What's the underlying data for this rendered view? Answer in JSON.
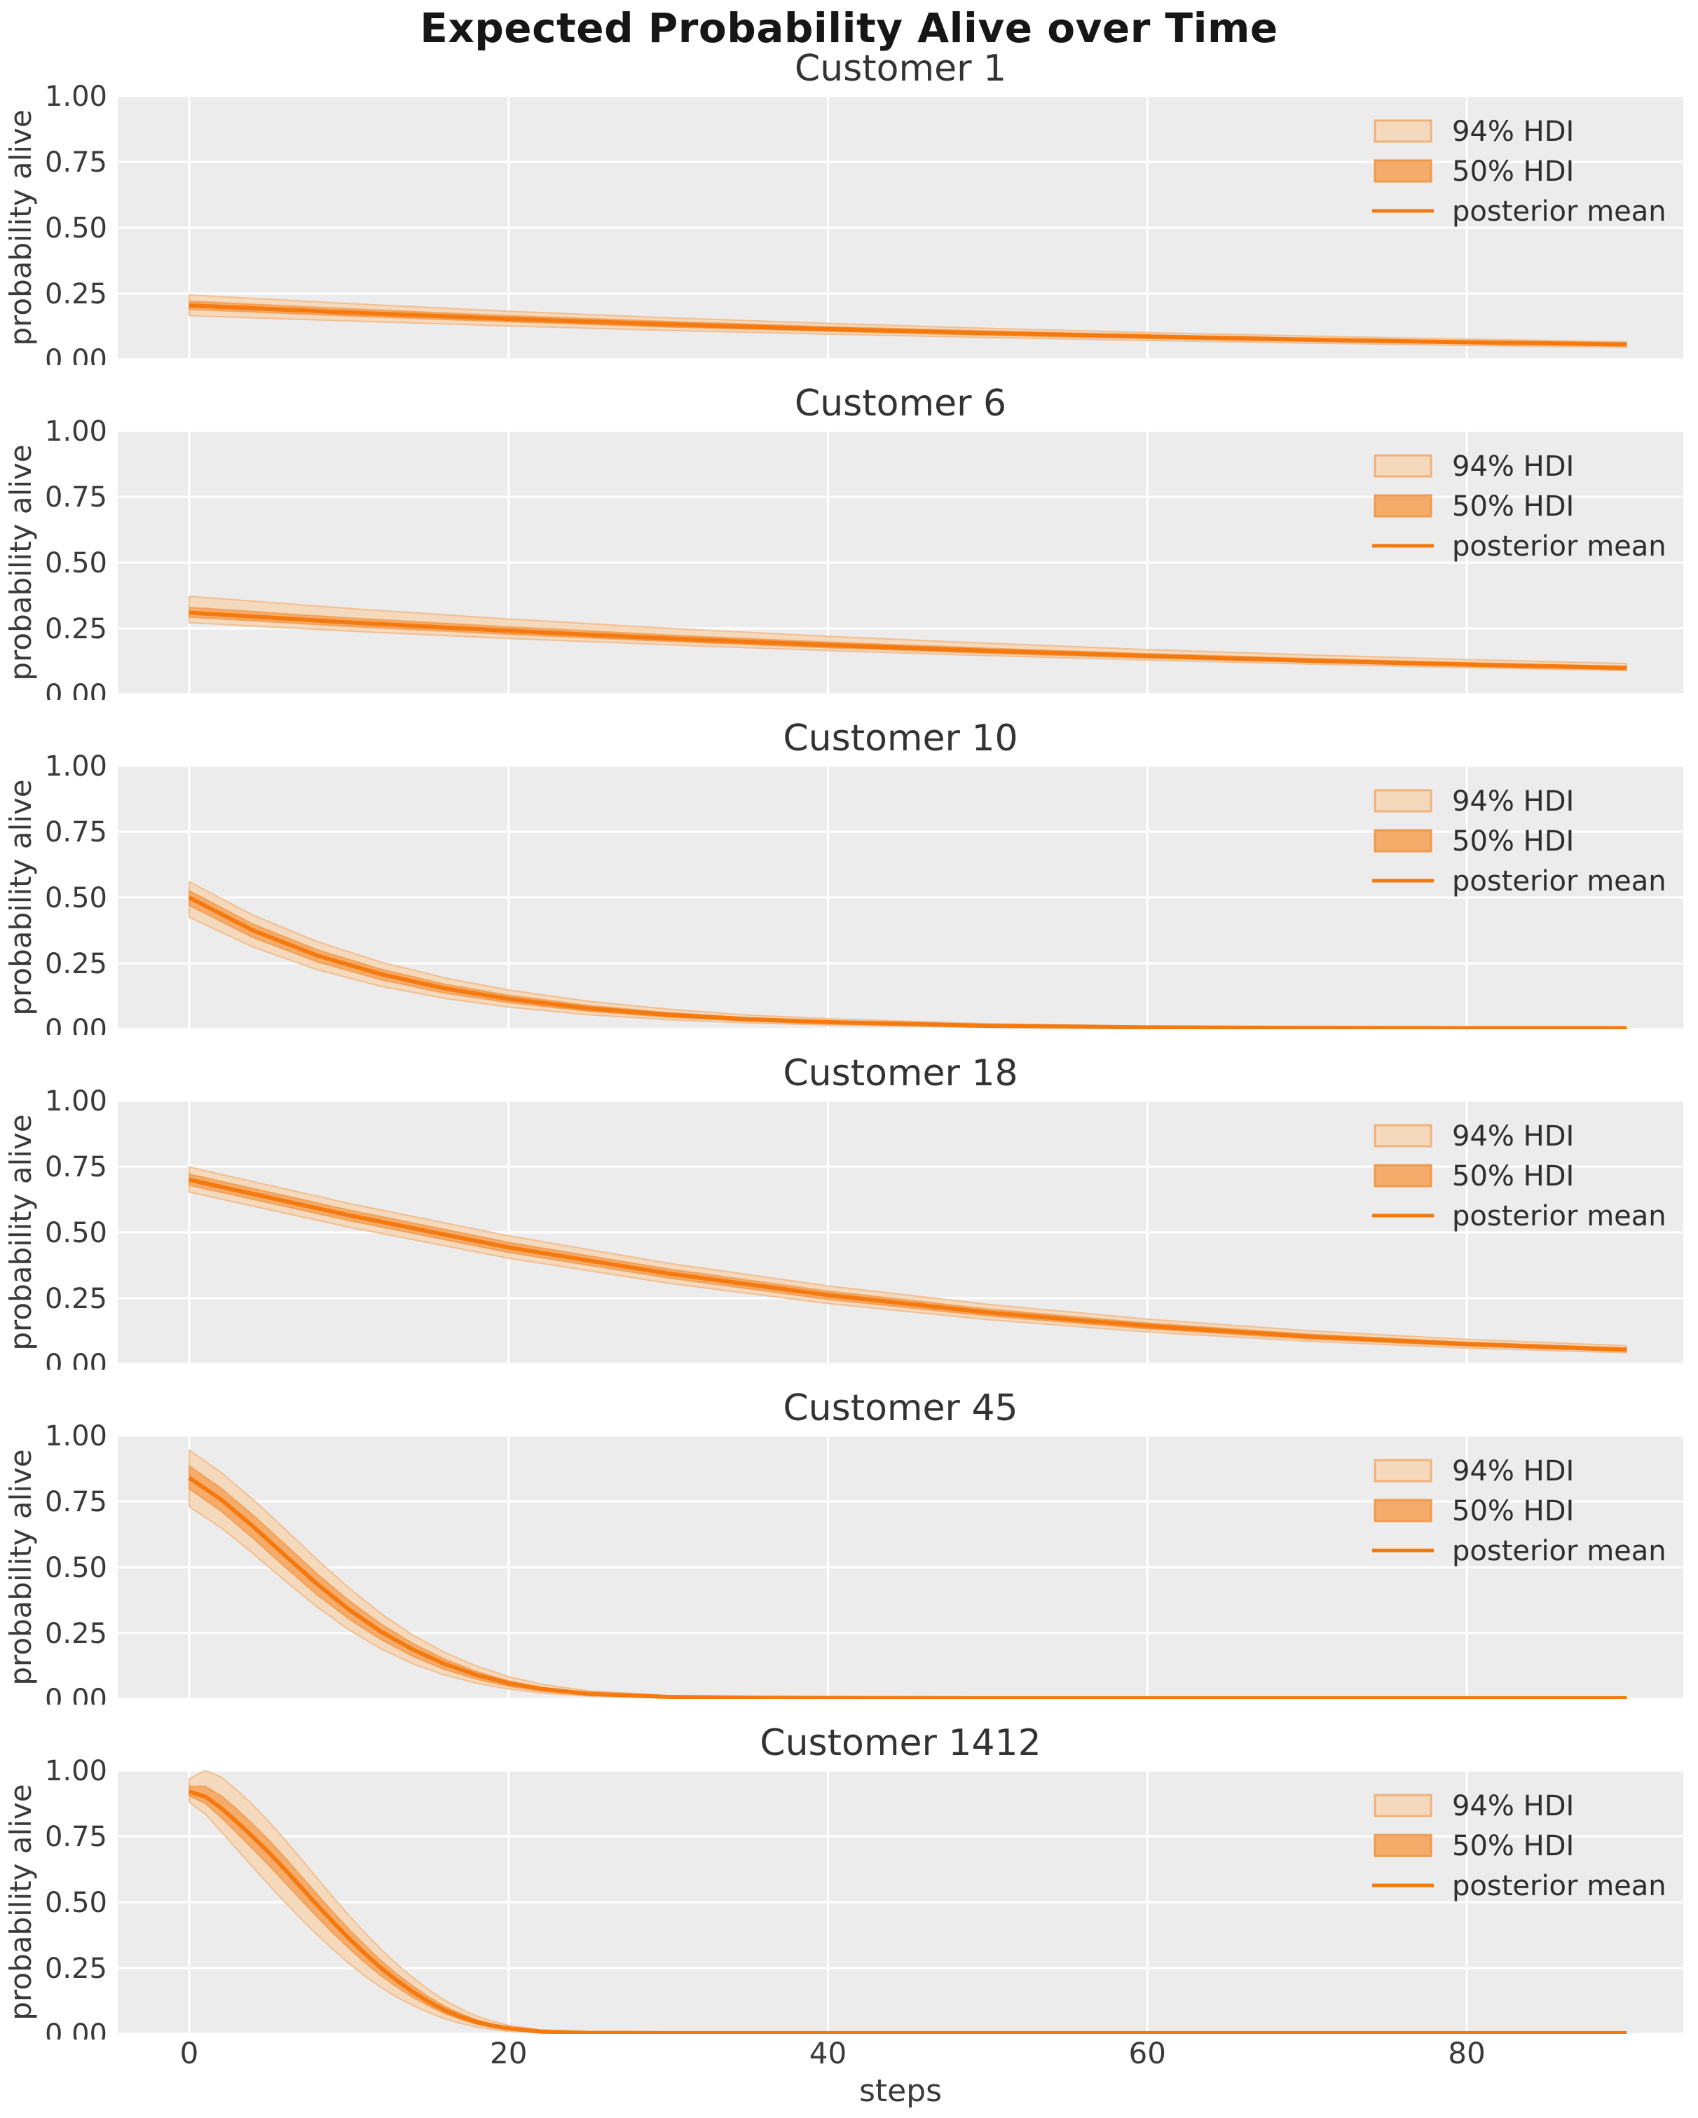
{
  "title": "Expected Probability Alive over Time",
  "x_axis": {
    "label": "steps",
    "ticks": [
      0,
      20,
      40,
      60,
      80
    ],
    "range": [
      -4.5,
      93.5
    ]
  },
  "y_axis": {
    "label": "probability alive",
    "tick_labels": [
      "0.00",
      "0.25",
      "0.50",
      "0.75",
      "1.00"
    ],
    "tick_values": [
      0,
      0.25,
      0.5,
      0.75,
      1.0
    ],
    "range": [
      0,
      1
    ]
  },
  "legend": {
    "items": [
      {
        "label": "94% HDI",
        "type": "patch"
      },
      {
        "label": "50% HDI",
        "type": "patch"
      },
      {
        "label": "posterior mean",
        "type": "line"
      }
    ]
  },
  "colors": {
    "axes_background": "#ececec",
    "grid": "#ffffff",
    "mean_line": "#f47a10",
    "hdi94_fill": "#f5d9bc",
    "hdi94_edge": "#f0b27c",
    "hdi50_fill": "#f5ab69",
    "hdi50_edge": "#ee9a4e",
    "tick_text": "#3a3a3a",
    "title_text": "#333333",
    "suptitle_text": "#161616"
  },
  "chart_data": {
    "type": "line",
    "title": "Expected Probability Alive over Time",
    "xlabel": "steps",
    "ylabel": "probability alive",
    "xlim": [
      -4.5,
      93.5
    ],
    "ylim": [
      0,
      1
    ],
    "grid": true,
    "legend_position": "upper right",
    "legend_labels": [
      "94% HDI",
      "50% HDI",
      "posterior mean"
    ],
    "subplots": [
      {
        "title": "Customer 1",
        "t": [
          0,
          10,
          20,
          30,
          40,
          50,
          60,
          70,
          80,
          90
        ],
        "mean": [
          0.205,
          0.178,
          0.154,
          0.133,
          0.115,
          0.1,
          0.087,
          0.075,
          0.065,
          0.057
        ],
        "hi94": [
          0.245,
          0.212,
          0.183,
          0.158,
          0.137,
          0.118,
          0.102,
          0.089,
          0.077,
          0.067
        ],
        "lo94": [
          0.166,
          0.146,
          0.127,
          0.11,
          0.096,
          0.083,
          0.072,
          0.062,
          0.053,
          0.046
        ],
        "hi50": [
          0.221,
          0.192,
          0.166,
          0.144,
          0.124,
          0.108,
          0.093,
          0.081,
          0.07,
          0.061
        ],
        "lo50": [
          0.19,
          0.165,
          0.143,
          0.123,
          0.107,
          0.092,
          0.08,
          0.069,
          0.06,
          0.052
        ]
      },
      {
        "title": "Customer 6",
        "t": [
          0,
          10,
          20,
          30,
          40,
          50,
          60,
          70,
          80,
          90
        ],
        "mean": [
          0.31,
          0.273,
          0.241,
          0.212,
          0.187,
          0.165,
          0.146,
          0.128,
          0.113,
          0.1
        ],
        "hi94": [
          0.372,
          0.326,
          0.286,
          0.251,
          0.22,
          0.194,
          0.17,
          0.15,
          0.132,
          0.117
        ],
        "lo94": [
          0.272,
          0.24,
          0.212,
          0.188,
          0.166,
          0.147,
          0.13,
          0.115,
          0.101,
          0.09
        ],
        "hi50": [
          0.33,
          0.29,
          0.256,
          0.225,
          0.198,
          0.175,
          0.154,
          0.136,
          0.12,
          0.106
        ],
        "lo50": [
          0.293,
          0.258,
          0.228,
          0.201,
          0.177,
          0.156,
          0.138,
          0.122,
          0.107,
          0.095
        ]
      },
      {
        "title": "Customer 10",
        "t": [
          0,
          4,
          8,
          12,
          16,
          20,
          25,
          30,
          35,
          40,
          50,
          60,
          70,
          80,
          90
        ],
        "mean": [
          0.5,
          0.375,
          0.28,
          0.209,
          0.155,
          0.115,
          0.079,
          0.055,
          0.038,
          0.027,
          0.013,
          0.007,
          0.005,
          0.004,
          0.004
        ],
        "hi94": [
          0.56,
          0.433,
          0.333,
          0.255,
          0.195,
          0.149,
          0.106,
          0.076,
          0.054,
          0.04,
          0.021,
          0.012,
          0.008,
          0.006,
          0.006
        ],
        "lo94": [
          0.425,
          0.312,
          0.226,
          0.163,
          0.117,
          0.084,
          0.055,
          0.036,
          0.024,
          0.016,
          0.007,
          0.003,
          0.002,
          0.002,
          0.002
        ],
        "hi50": [
          0.526,
          0.399,
          0.302,
          0.228,
          0.171,
          0.129,
          0.09,
          0.063,
          0.044,
          0.032,
          0.016,
          0.009,
          0.006,
          0.005,
          0.005
        ],
        "lo50": [
          0.47,
          0.348,
          0.256,
          0.188,
          0.137,
          0.101,
          0.068,
          0.046,
          0.031,
          0.021,
          0.01,
          0.005,
          0.003,
          0.003,
          0.003
        ]
      },
      {
        "title": "Customer 18",
        "t": [
          0,
          10,
          20,
          30,
          40,
          50,
          60,
          70,
          80,
          90
        ],
        "mean": [
          0.7,
          0.565,
          0.443,
          0.344,
          0.262,
          0.196,
          0.145,
          0.105,
          0.076,
          0.055
        ],
        "hi94": [
          0.748,
          0.61,
          0.487,
          0.383,
          0.297,
          0.227,
          0.171,
          0.127,
          0.094,
          0.07
        ],
        "lo94": [
          0.653,
          0.52,
          0.402,
          0.307,
          0.23,
          0.169,
          0.122,
          0.087,
          0.061,
          0.043
        ],
        "hi50": [
          0.721,
          0.585,
          0.462,
          0.361,
          0.277,
          0.209,
          0.156,
          0.114,
          0.083,
          0.061
        ],
        "lo50": [
          0.679,
          0.545,
          0.424,
          0.327,
          0.246,
          0.183,
          0.134,
          0.096,
          0.069,
          0.049
        ]
      },
      {
        "title": "Customer 45",
        "t": [
          0,
          2,
          4,
          6,
          8,
          10,
          12,
          14,
          16,
          18,
          20,
          22,
          25,
          30,
          35,
          40,
          50,
          60,
          70,
          80,
          90
        ],
        "mean": [
          0.84,
          0.757,
          0.655,
          0.545,
          0.437,
          0.34,
          0.256,
          0.188,
          0.133,
          0.091,
          0.06,
          0.039,
          0.02,
          0.008,
          0.005,
          0.004,
          0.003,
          0.003,
          0.003,
          0.003,
          0.003
        ],
        "hi94": [
          0.945,
          0.86,
          0.757,
          0.645,
          0.53,
          0.422,
          0.325,
          0.243,
          0.177,
          0.125,
          0.085,
          0.057,
          0.031,
          0.013,
          0.007,
          0.005,
          0.004,
          0.004,
          0.004,
          0.004,
          0.004
        ],
        "lo94": [
          0.73,
          0.65,
          0.552,
          0.449,
          0.35,
          0.263,
          0.191,
          0.134,
          0.091,
          0.06,
          0.038,
          0.023,
          0.011,
          0.004,
          0.002,
          0.002,
          0.002,
          0.002,
          0.002,
          0.002,
          0.002
        ],
        "hi50": [
          0.885,
          0.8,
          0.698,
          0.587,
          0.476,
          0.374,
          0.285,
          0.211,
          0.151,
          0.104,
          0.069,
          0.045,
          0.024,
          0.01,
          0.006,
          0.004,
          0.003,
          0.003,
          0.003,
          0.003,
          0.003
        ],
        "lo50": [
          0.798,
          0.713,
          0.61,
          0.501,
          0.396,
          0.304,
          0.226,
          0.162,
          0.112,
          0.075,
          0.048,
          0.03,
          0.015,
          0.006,
          0.003,
          0.003,
          0.002,
          0.002,
          0.002,
          0.002,
          0.002
        ]
      },
      {
        "title": "Customer 1412",
        "t": [
          0,
          1,
          2,
          3,
          4,
          5,
          6,
          7,
          8,
          9,
          10,
          11,
          12,
          13,
          14,
          15,
          16,
          17,
          18,
          19,
          20,
          22,
          25,
          30,
          40,
          60,
          90
        ],
        "mean": [
          0.92,
          0.901,
          0.857,
          0.804,
          0.747,
          0.688,
          0.624,
          0.557,
          0.49,
          0.425,
          0.363,
          0.305,
          0.251,
          0.203,
          0.16,
          0.122,
          0.09,
          0.065,
          0.045,
          0.031,
          0.021,
          0.009,
          0.004,
          0.003,
          0.003,
          0.003,
          0.003
        ],
        "hi94": [
          0.968,
          1.0,
          0.975,
          0.925,
          0.868,
          0.805,
          0.737,
          0.665,
          0.592,
          0.52,
          0.45,
          0.384,
          0.322,
          0.265,
          0.214,
          0.168,
          0.128,
          0.095,
          0.068,
          0.048,
          0.033,
          0.015,
          0.006,
          0.004,
          0.004,
          0.004,
          0.004
        ],
        "lo94": [
          0.88,
          0.835,
          0.768,
          0.7,
          0.632,
          0.565,
          0.5,
          0.437,
          0.377,
          0.321,
          0.268,
          0.22,
          0.177,
          0.14,
          0.108,
          0.081,
          0.058,
          0.04,
          0.026,
          0.017,
          0.01,
          0.004,
          0.002,
          0.002,
          0.002,
          0.002,
          0.002
        ],
        "hi50": [
          0.94,
          0.94,
          0.904,
          0.852,
          0.795,
          0.735,
          0.669,
          0.6,
          0.531,
          0.463,
          0.398,
          0.337,
          0.279,
          0.228,
          0.182,
          0.14,
          0.105,
          0.077,
          0.054,
          0.038,
          0.026,
          0.011,
          0.005,
          0.003,
          0.003,
          0.003,
          0.003
        ],
        "lo50": [
          0.904,
          0.875,
          0.821,
          0.762,
          0.701,
          0.639,
          0.574,
          0.509,
          0.445,
          0.383,
          0.325,
          0.271,
          0.221,
          0.178,
          0.139,
          0.106,
          0.077,
          0.055,
          0.037,
          0.025,
          0.016,
          0.006,
          0.003,
          0.002,
          0.002,
          0.002,
          0.002
        ]
      }
    ]
  }
}
